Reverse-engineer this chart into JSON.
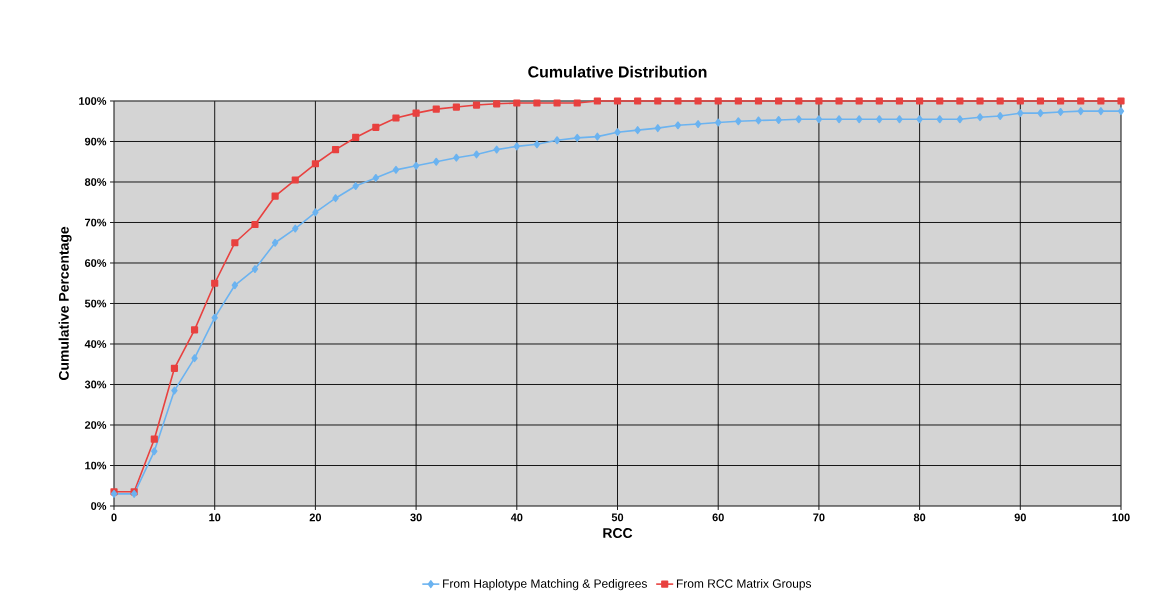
{
  "chart_data": {
    "type": "line",
    "title": "Cumulative Distribution",
    "xlabel": "RCC",
    "ylabel": "Cumulative Percentage",
    "x": [
      0,
      2,
      4,
      6,
      8,
      10,
      12,
      14,
      16,
      18,
      20,
      22,
      24,
      26,
      28,
      30,
      32,
      34,
      36,
      38,
      40,
      42,
      44,
      46,
      48,
      50,
      52,
      54,
      56,
      58,
      60,
      62,
      64,
      66,
      68,
      70,
      72,
      74,
      76,
      78,
      80,
      82,
      84,
      86,
      88,
      90,
      92,
      94,
      96,
      98,
      100
    ],
    "series": [
      {
        "name": "From Haplotype Matching & Pedigrees",
        "color": "#6bb3f0",
        "marker": "diamond",
        "values": [
          3,
          3,
          13.5,
          28.5,
          36.5,
          46.5,
          54.5,
          58.5,
          65,
          68.5,
          72.5,
          76,
          79,
          81,
          83,
          84,
          85,
          86,
          86.8,
          88,
          88.8,
          89.3,
          90.3,
          90.9,
          91.2,
          92.3,
          92.8,
          93.3,
          94,
          94.3,
          94.7,
          95,
          95.2,
          95.3,
          95.5,
          95.5,
          95.5,
          95.5,
          95.5,
          95.5,
          95.5,
          95.5,
          95.5,
          96,
          96.3,
          97,
          97,
          97.3,
          97.5,
          97.5,
          97.5
        ]
      },
      {
        "name": "From RCC Matrix Groups",
        "color": "#e8413f",
        "marker": "square",
        "values": [
          3.5,
          3.5,
          16.5,
          34,
          43.5,
          55,
          65,
          69.5,
          76.5,
          80.5,
          84.5,
          88,
          91,
          93.5,
          95.8,
          97,
          98,
          98.5,
          99,
          99.3,
          99.5,
          99.5,
          99.5,
          99.5,
          100,
          100,
          100,
          100,
          100,
          100,
          100,
          100,
          100,
          100,
          100,
          100,
          100,
          100,
          100,
          100,
          100,
          100,
          100,
          100,
          100,
          100,
          100,
          100,
          100,
          100,
          100
        ]
      }
    ],
    "xlim": [
      0,
      100
    ],
    "xticks": [
      0,
      10,
      20,
      30,
      40,
      50,
      60,
      70,
      80,
      90,
      100
    ],
    "ylim": [
      0,
      100
    ],
    "yticks": [
      {
        "value": 0,
        "label": "0%"
      },
      {
        "value": 10,
        "label": "10%"
      },
      {
        "value": 20,
        "label": "20%"
      },
      {
        "value": 30,
        "label": "30%"
      },
      {
        "value": 40,
        "label": "40%"
      },
      {
        "value": 50,
        "label": "50%"
      },
      {
        "value": 60,
        "label": "60%"
      },
      {
        "value": 70,
        "label": "70%"
      },
      {
        "value": 80,
        "label": "80%"
      },
      {
        "value": 90,
        "label": "90%"
      },
      {
        "value": 100,
        "label": "100%"
      }
    ],
    "grid": true,
    "legend": "bottom",
    "line_style": "solid"
  }
}
